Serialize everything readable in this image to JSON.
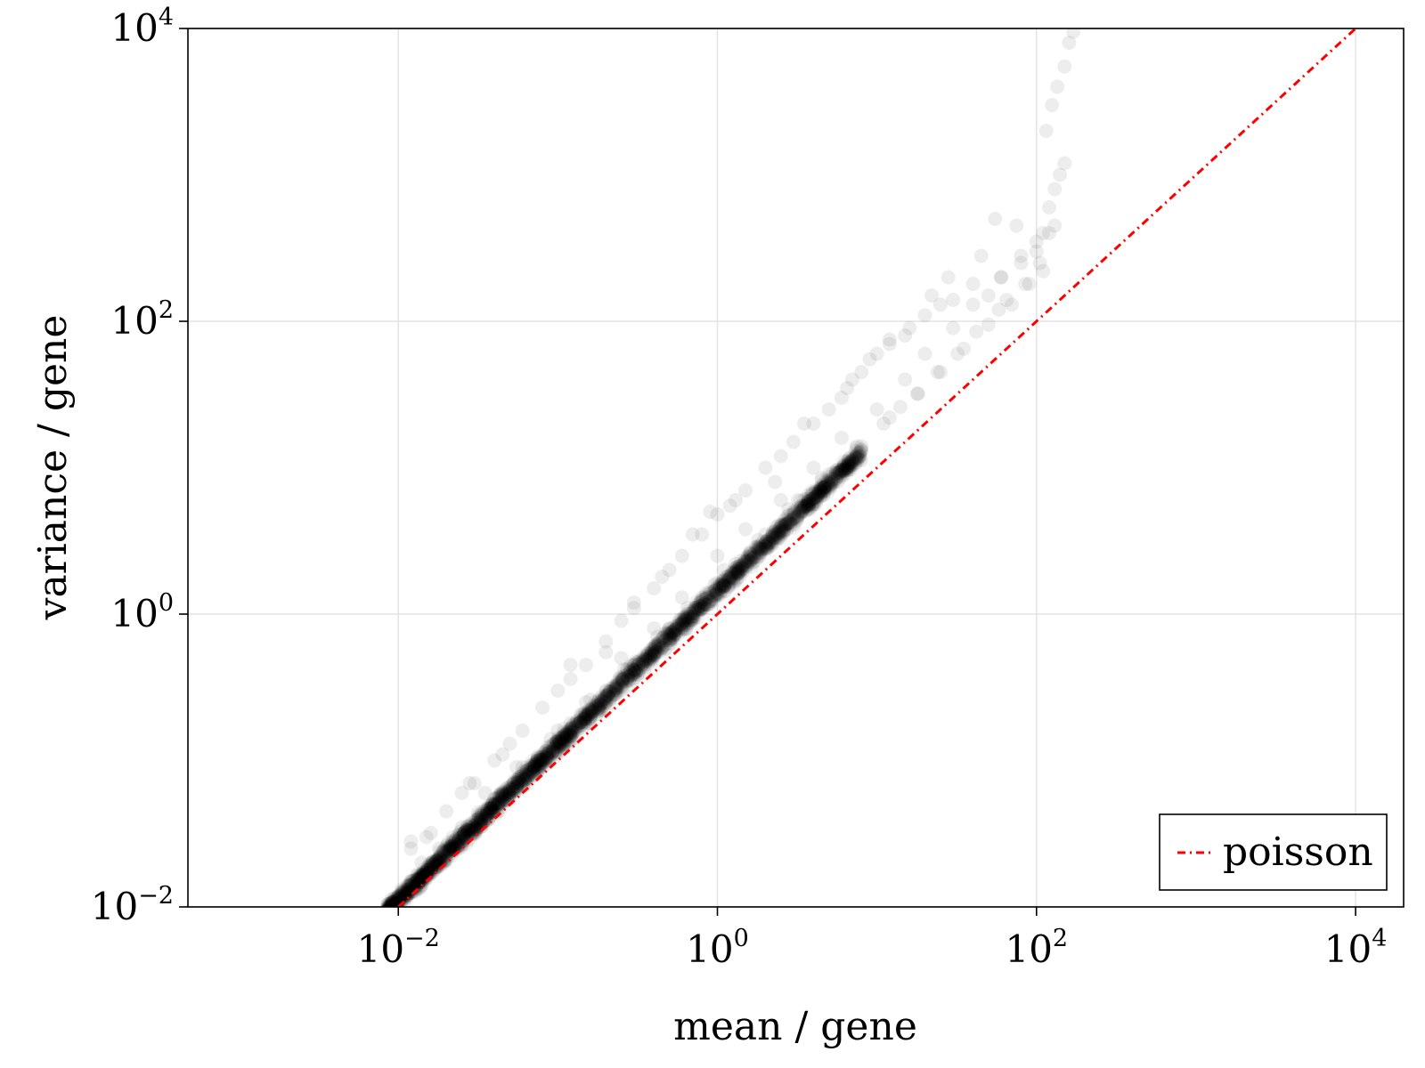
{
  "chart_data": {
    "type": "scatter",
    "title": "",
    "xlabel": "mean / gene",
    "ylabel": "variance / gene",
    "x_scale": "log10",
    "y_scale": "log10",
    "xlim": [
      0.00048,
      20000
    ],
    "ylim": [
      0.01,
      10000
    ],
    "x_ticks": [
      {
        "base": "10",
        "exp": "−2",
        "value": 0.01
      },
      {
        "base": "10",
        "exp": "0",
        "value": 1
      },
      {
        "base": "10",
        "exp": "2",
        "value": 100
      },
      {
        "base": "10",
        "exp": "4",
        "value": 10000
      }
    ],
    "y_ticks": [
      {
        "base": "10",
        "exp": "−2",
        "value": 0.01
      },
      {
        "base": "10",
        "exp": "0",
        "value": 1
      },
      {
        "base": "10",
        "exp": "2",
        "value": 100
      },
      {
        "base": "10",
        "exp": "4",
        "value": 10000
      }
    ],
    "grid": true,
    "legend_position": "bottom-right",
    "series": [
      {
        "name": "",
        "kind": "scatter",
        "color": "#000000",
        "opacity": 0.05,
        "trend": {
          "x_range": [
            0.0085,
            8
          ],
          "variance_over_mean": [
            1.1,
            1.6
          ]
        },
        "x": [
          0.0085,
          0.009,
          0.0095,
          0.01,
          0.0105,
          0.011,
          0.012,
          0.013,
          0.014,
          0.015,
          0.016,
          0.018,
          0.02,
          0.022,
          0.025,
          0.028,
          0.03,
          0.033,
          0.036,
          0.04,
          0.045,
          0.05,
          0.055,
          0.06,
          0.07,
          0.08,
          0.09,
          0.1,
          0.11,
          0.12,
          0.14,
          0.16,
          0.18,
          0.2,
          0.22,
          0.25,
          0.28,
          0.3,
          0.35,
          0.4,
          0.45,
          0.5,
          0.55,
          0.6,
          0.7,
          0.8,
          0.9,
          1.0,
          1.1,
          1.2,
          1.4,
          1.6,
          1.8,
          2.0,
          2.2,
          2.5,
          2.8,
          3.0,
          3.5,
          4.0,
          4.5,
          5.0,
          6.0,
          7.0,
          8.0,
          0.012,
          0.015,
          0.02,
          0.025,
          0.03,
          0.04,
          0.05,
          0.06,
          0.08,
          0.1,
          0.12,
          0.15,
          0.2,
          0.25,
          0.3,
          0.4,
          0.5,
          0.6,
          0.8,
          1.0,
          1.2,
          1.5,
          2.0,
          2.5,
          3.0,
          4.0,
          5.0,
          6.0,
          7.0,
          8.0,
          10,
          12,
          15,
          20,
          25,
          30,
          40,
          50,
          60,
          80,
          100,
          110,
          120,
          130,
          140,
          150,
          0.012,
          0.018,
          0.025,
          0.04,
          0.06,
          0.1,
          0.15,
          0.25,
          0.4,
          0.6,
          1.0,
          1.5,
          2.5,
          4,
          6,
          10,
          15,
          20,
          30,
          40,
          60,
          80,
          100,
          120,
          130,
          0.014,
          0.022,
          0.032,
          0.05,
          0.075,
          0.12,
          0.2,
          0.3,
          0.5,
          0.8,
          1.3,
          2.0,
          3.2,
          5,
          8,
          12,
          18,
          25,
          35,
          50,
          70,
          90,
          110,
          0.012,
          0.028,
          0.045,
          0.12,
          0.2,
          0.3,
          0.45,
          0.7,
          0.9,
          1.3,
          2.3,
          3.5,
          6.5,
          9,
          12,
          16,
          22,
          28,
          45,
          55,
          75,
          115,
          125,
          135,
          150,
          160,
          170,
          0.016,
          0.035,
          0.055,
          0.09,
          0.16,
          0.26,
          0.42,
          0.65,
          1.1,
          1.8,
          2.8,
          4.5,
          7.5,
          11,
          14,
          18,
          24,
          32,
          42,
          58,
          65,
          85,
          105
        ],
        "y": [
          0.0094,
          0.0103,
          0.0111,
          0.0118,
          0.0124,
          0.0131,
          0.0142,
          0.0154,
          0.0166,
          0.0178,
          0.019,
          0.0214,
          0.0238,
          0.0262,
          0.0298,
          0.0334,
          0.0359,
          0.0396,
          0.0432,
          0.0481,
          0.0542,
          0.0603,
          0.0665,
          0.0726,
          0.0851,
          0.0976,
          0.11,
          0.123,
          0.136,
          0.149,
          0.174,
          0.2,
          0.226,
          0.252,
          0.279,
          0.318,
          0.358,
          0.385,
          0.452,
          0.521,
          0.59,
          0.66,
          0.73,
          0.8,
          0.94,
          1.09,
          1.23,
          1.38,
          1.53,
          1.68,
          1.98,
          2.29,
          2.6,
          2.91,
          3.23,
          3.71,
          4.19,
          4.52,
          5.34,
          6.17,
          7.0,
          7.85,
          9.55,
          11.3,
          13.0,
          0.025,
          0.03,
          0.045,
          0.06,
          0.07,
          0.1,
          0.13,
          0.16,
          0.23,
          0.3,
          0.36,
          0.45,
          0.65,
          0.9,
          1.1,
          1.5,
          2.0,
          2.5,
          3.5,
          4.8,
          5.5,
          7,
          10,
          12,
          15,
          20,
          25,
          30,
          40,
          45,
          60,
          70,
          80,
          110,
          130,
          140,
          180,
          150,
          200,
          250,
          300,
          400,
          600,
          800,
          1000,
          1200,
          0.015,
          0.025,
          0.035,
          0.055,
          0.09,
          0.16,
          0.25,
          0.5,
          0.8,
          1.3,
          2.5,
          3.8,
          6,
          10,
          16,
          25,
          40,
          60,
          90,
          130,
          200,
          280,
          350,
          400,
          450,
          0.02,
          0.03,
          0.042,
          0.065,
          0.1,
          0.18,
          0.3,
          0.45,
          0.8,
          1.3,
          2.2,
          3.5,
          6,
          9,
          14,
          22,
          32,
          45,
          65,
          95,
          130,
          180,
          220,
          0.028,
          0.07,
          0.11,
          0.45,
          0.55,
          1.2,
          1.8,
          3.5,
          5,
          6,
          8,
          20,
          35,
          55,
          75,
          90,
          150,
          200,
          280,
          500,
          450,
          2000,
          3000,
          4000,
          5500,
          8000,
          9500,
          0.032,
          0.06,
          0.09,
          0.14,
          0.26,
          0.42,
          0.7,
          1.1,
          2.0,
          3.2,
          5.2,
          8.5,
          14,
          20,
          26,
          32,
          45,
          60,
          85,
          120,
          140,
          180,
          250
        ]
      },
      {
        "name": "poisson",
        "kind": "line",
        "style": "dash-dot",
        "color": "#ff0000",
        "x": [
          0.01,
          10000
        ],
        "y": [
          0.01,
          10000
        ]
      }
    ]
  }
}
